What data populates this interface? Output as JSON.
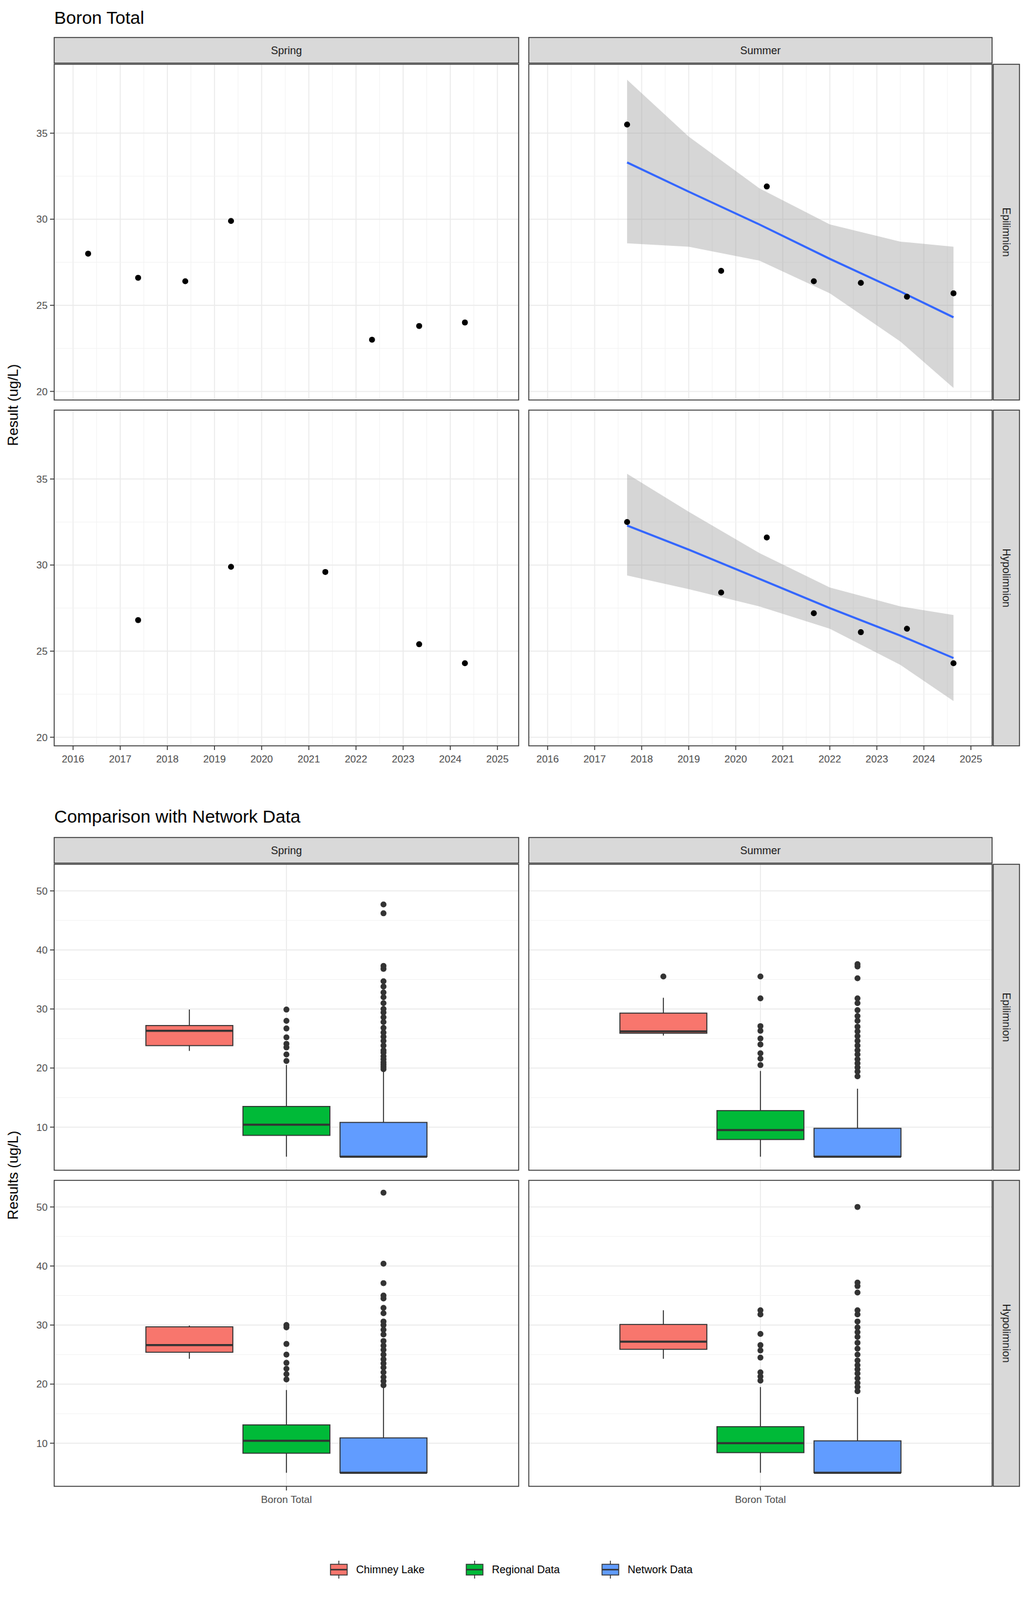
{
  "chart_data": [
    {
      "type": "scatter",
      "title": "Boron Total",
      "y_label": "Result (ug/L)",
      "columns": [
        "Spring",
        "Summer"
      ],
      "rows": [
        "Epilimnion",
        "Hypolimnion"
      ],
      "xlim": [
        2015.6,
        2025.45
      ],
      "xticks": [
        2016,
        2017,
        2018,
        2019,
        2020,
        2021,
        2022,
        2023,
        2024,
        2025
      ],
      "ylim": [
        19.5,
        39.0
      ],
      "yticks": [
        20,
        25,
        30,
        35
      ],
      "grid": true,
      "color": "#000000",
      "panels": [
        [
          {
            "x": [
              2016.32,
              2017.38,
              2018.38,
              2019.35,
              2022.34,
              2023.34,
              2024.31
            ],
            "values": [
              28.0,
              26.6,
              26.4,
              29.9,
              23.0,
              23.8,
              24.0
            ]
          },
          {
            "x": [
              2017.69,
              2019.69,
              2020.66,
              2021.66,
              2022.66,
              2023.64,
              2024.63
            ],
            "values": [
              35.5,
              27.0,
              31.9,
              26.4,
              26.3,
              25.5,
              25.7
            ],
            "trend": {
              "x": [
                2017.69,
                2019.0,
                2020.5,
                2022.0,
                2023.5,
                2024.63
              ],
              "values": [
                33.3,
                31.6,
                29.7,
                27.7,
                25.8,
                24.3
              ],
              "lower": [
                28.6,
                28.4,
                27.6,
                25.7,
                22.9,
                20.2
              ],
              "upper": [
                38.1,
                34.8,
                31.8,
                29.7,
                28.7,
                28.4
              ],
              "color": "#3366FF"
            }
          }
        ],
        [
          {
            "x": [
              2017.38,
              2019.35,
              2021.35,
              2023.34,
              2024.31
            ],
            "values": [
              26.8,
              29.9,
              29.6,
              25.4,
              24.3
            ]
          },
          {
            "x": [
              2017.69,
              2019.69,
              2020.66,
              2021.66,
              2022.66,
              2023.64,
              2024.63
            ],
            "values": [
              32.5,
              28.4,
              31.6,
              27.2,
              26.1,
              26.3,
              24.3
            ],
            "trend": {
              "x": [
                2017.69,
                2019.0,
                2020.5,
                2022.0,
                2023.5,
                2024.63
              ],
              "values": [
                32.3,
                30.9,
                29.2,
                27.5,
                25.9,
                24.6
              ],
              "lower": [
                29.4,
                28.6,
                27.6,
                26.3,
                24.2,
                22.1
              ],
              "upper": [
                35.3,
                33.1,
                30.7,
                28.7,
                27.6,
                27.1
              ],
              "color": "#3366FF"
            }
          }
        ]
      ]
    },
    {
      "type": "box",
      "title": "Comparison with Network Data",
      "y_label": "Results (ug/L)",
      "columns": [
        "Spring",
        "Summer"
      ],
      "rows": [
        "Epilimnion",
        "Hypolimnion"
      ],
      "categories": [
        "Boron Total"
      ],
      "ylim": [
        2.7,
        54.5
      ],
      "yticks": [
        10,
        20,
        30,
        40,
        50
      ],
      "grid": true,
      "legend": "bottom",
      "series": [
        {
          "name": "Chimney Lake",
          "color": "#F8766D"
        },
        {
          "name": "Regional Data",
          "color": "#00BA38"
        },
        {
          "name": "Network Data",
          "color": "#619CFF"
        }
      ],
      "panels": [
        [
          {
            "boxes": [
              {
                "low": 22.9,
                "q1": 23.8,
                "median": 26.3,
                "q3": 27.2,
                "high": 29.9,
                "outliers": []
              },
              {
                "low": 5,
                "q1": 8.6,
                "median": 10.4,
                "q3": 13.5,
                "high": 20.5,
                "outliers": [
                  21.2,
                  22.3,
                  23.5,
                  24.1,
                  25.2,
                  26.7,
                  28.0,
                  29.9
                ]
              },
              {
                "low": 5,
                "q1": 5,
                "median": 5,
                "q3": 10.8,
                "high": 19.5,
                "outliers": [
                  19.8,
                  20.2,
                  20.6,
                  21.0,
                  21.5,
                  22.0,
                  22.6,
                  23.0,
                  23.8,
                  24.6,
                  25.3,
                  26.0,
                  26.8,
                  27.8,
                  28.6,
                  29.4,
                  30.0,
                  31.0,
                  32.0,
                  32.8,
                  33.8,
                  34.7,
                  36.8,
                  37.3,
                  46.2,
                  47.7
                ]
              }
            ]
          },
          {
            "boxes": [
              {
                "low": 25.5,
                "q1": 25.9,
                "median": 26.2,
                "q3": 29.3,
                "high": 31.9,
                "outliers": [
                  35.5
                ]
              },
              {
                "low": 5,
                "q1": 7.9,
                "median": 9.5,
                "q3": 12.8,
                "high": 19.5,
                "outliers": [
                  20.5,
                  21.6,
                  22.5,
                  24.0,
                  25.0,
                  26.3,
                  27.1,
                  31.8,
                  35.5
                ]
              },
              {
                "low": 5,
                "q1": 5,
                "median": 5,
                "q3": 9.8,
                "high": 16.5,
                "outliers": [
                  18.6,
                  19.4,
                  20.1,
                  20.8,
                  21.5,
                  22.3,
                  23.0,
                  23.8,
                  24.6,
                  25.4,
                  26.2,
                  27.0,
                  28.0,
                  28.8,
                  29.8,
                  31.0,
                  31.8,
                  35.2,
                  37.2,
                  37.6
                ]
              }
            ]
          }
        ],
        [
          {
            "boxes": [
              {
                "low": 24.3,
                "q1": 25.4,
                "median": 26.6,
                "q3": 29.7,
                "high": 29.9,
                "outliers": []
              },
              {
                "low": 5,
                "q1": 8.3,
                "median": 10.4,
                "q3": 13.1,
                "high": 19.0,
                "outliers": [
                  20.8,
                  21.7,
                  22.6,
                  23.6,
                  25.0,
                  26.8,
                  29.6,
                  30.0
                ]
              },
              {
                "low": 5,
                "q1": 5,
                "median": 5,
                "q3": 10.9,
                "high": 19.4,
                "outliers": [
                  19.8,
                  20.5,
                  21.2,
                  22.0,
                  22.8,
                  23.5,
                  24.2,
                  25.0,
                  25.8,
                  26.5,
                  27.3,
                  28.4,
                  29.2,
                  30.0,
                  30.6,
                  32.0,
                  32.9,
                  34.5,
                  35.0,
                  37.1,
                  40.4,
                  52.4
                ]
              }
            ]
          },
          {
            "boxes": [
              {
                "low": 24.3,
                "q1": 25.9,
                "median": 27.2,
                "q3": 30.1,
                "high": 32.5,
                "outliers": []
              },
              {
                "low": 5,
                "q1": 8.4,
                "median": 10.0,
                "q3": 12.8,
                "high": 19.5,
                "outliers": [
                  20.6,
                  21.3,
                  22.0,
                  24.5,
                  25.7,
                  26.6,
                  28.5,
                  31.8,
                  32.5
                ]
              },
              {
                "low": 5,
                "q1": 5,
                "median": 5,
                "q3": 10.4,
                "high": 17.8,
                "outliers": [
                  18.8,
                  19.5,
                  20.2,
                  21.0,
                  21.8,
                  22.5,
                  23.2,
                  24.0,
                  25.0,
                  26.0,
                  27.0,
                  28.0,
                  28.8,
                  29.6,
                  30.6,
                  31.8,
                  32.5,
                  35.5,
                  36.6,
                  37.2,
                  50.0
                ]
              }
            ]
          }
        ]
      ]
    }
  ]
}
